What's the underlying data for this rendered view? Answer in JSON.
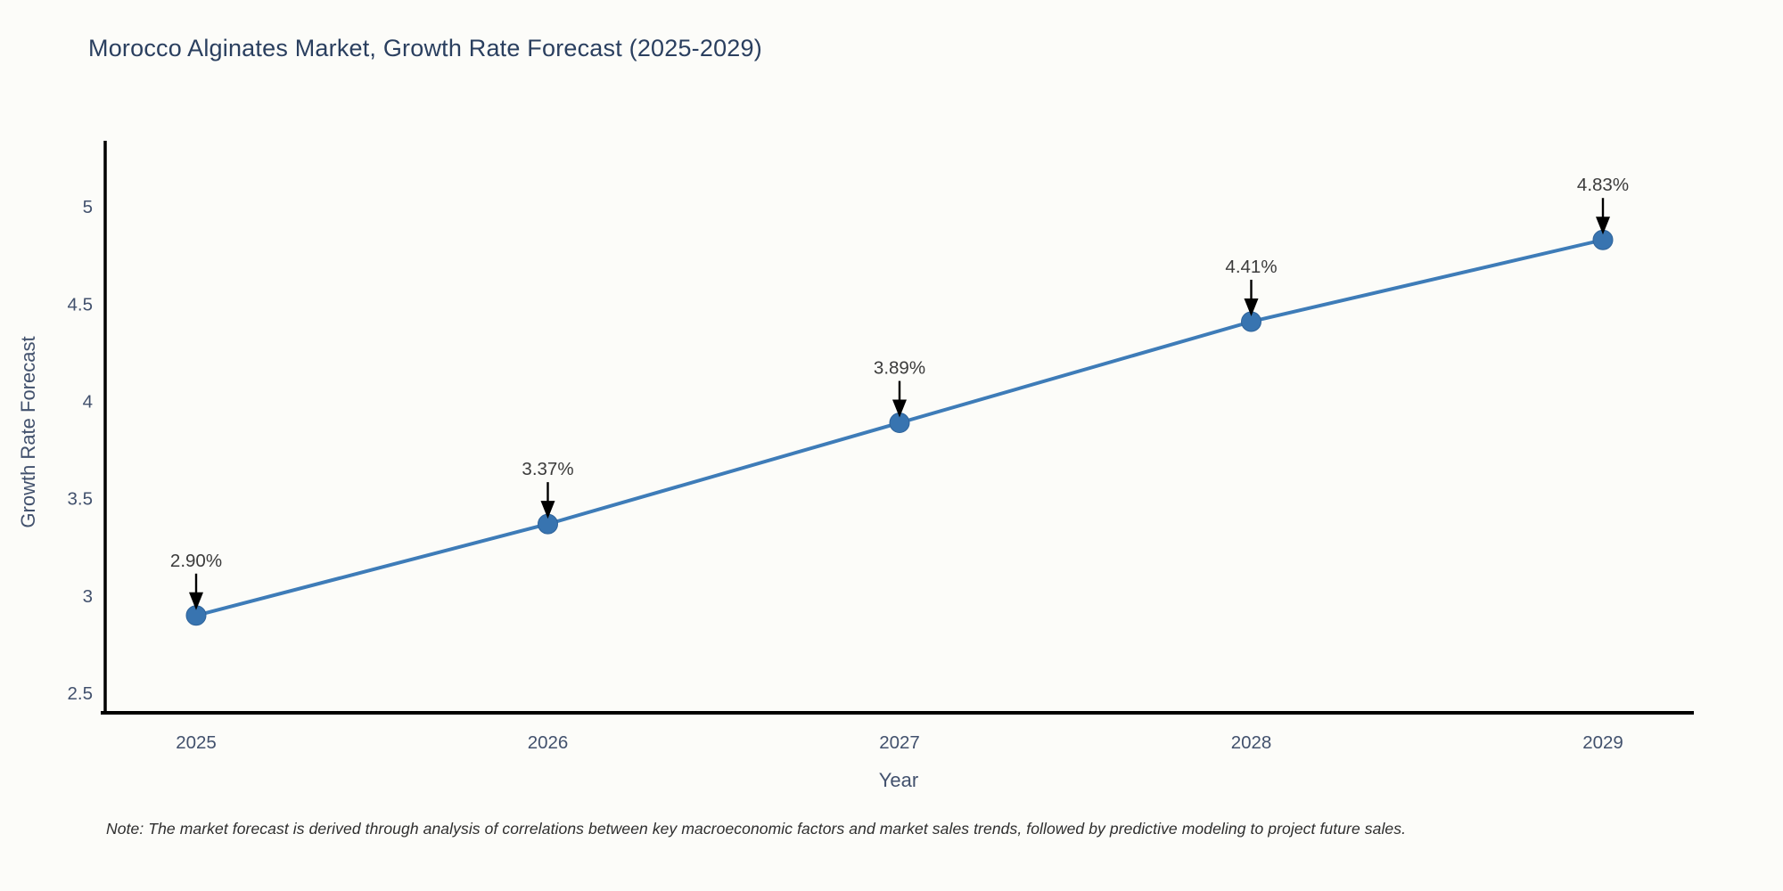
{
  "chart_data": {
    "type": "line",
    "title": "Morocco Alginates Market, Growth Rate Forecast (2025-2029)",
    "xlabel": "Year",
    "ylabel": "Growth Rate Forecast",
    "categories": [
      "2025",
      "2026",
      "2027",
      "2028",
      "2029"
    ],
    "values": [
      2.9,
      3.37,
      3.89,
      4.41,
      4.83
    ],
    "point_labels": [
      "2.90%",
      "3.37%",
      "3.89%",
      "4.41%",
      "4.83%"
    ],
    "yticks": [
      "2.5",
      "3",
      "3.5",
      "4",
      "4.5",
      "5"
    ],
    "ylim": [
      2.4,
      5.33
    ],
    "grid": false,
    "legend_position": "none",
    "note": "Note: The market forecast is derived through analysis of correlations between key macroeconomic factors and market sales trends, followed by predictive modeling to project future sales.",
    "colors": {
      "line": "#3e7cb8",
      "marker": "#3874b0",
      "marker_edge": "#2f639a",
      "axis": "#000000",
      "title_text": "#2a3f5f",
      "tick_text": "#42516d",
      "annotation_text": "#3b3b3b",
      "arrow": "#000000"
    }
  }
}
